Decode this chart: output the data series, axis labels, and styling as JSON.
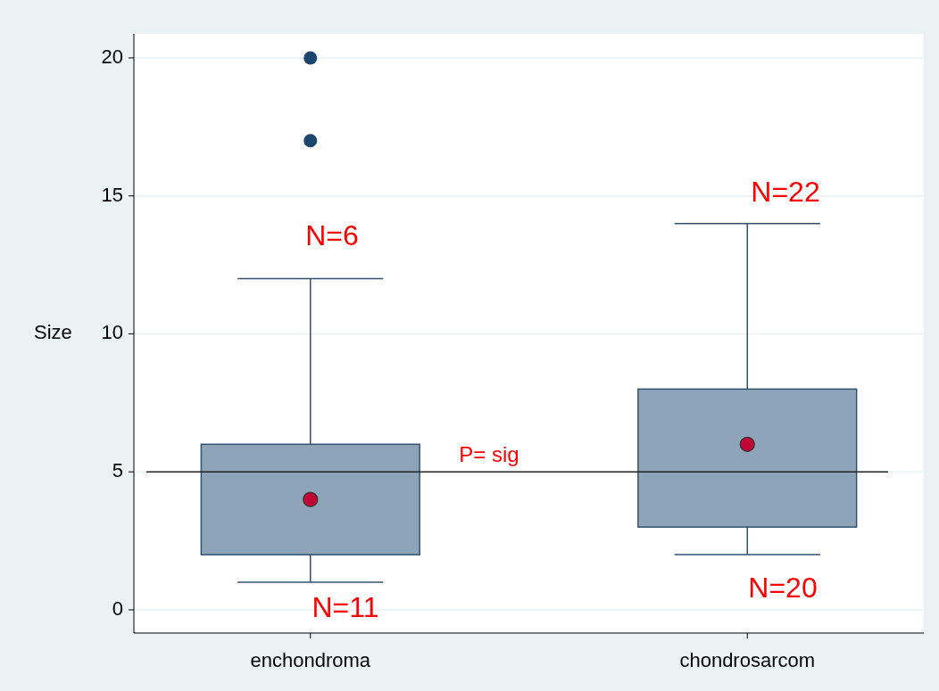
{
  "chart_data": {
    "type": "box",
    "ylabel": "Size",
    "categories": [
      "enchondroma",
      "chondrosarcom"
    ],
    "boxes": [
      {
        "low": 1,
        "q1": 2,
        "median": 4,
        "q3": 6,
        "high": 12,
        "outliers": [
          17,
          20
        ]
      },
      {
        "low": 2,
        "q1": 3,
        "median": 6,
        "q3": 8,
        "high": 14
      }
    ],
    "color": "#8ea4b8",
    "ylim": [
      -0.84,
      20.87
    ],
    "yticks": [
      0,
      5,
      10,
      15,
      20
    ],
    "grid": "y",
    "ref_lines": [
      {
        "axis": "y",
        "value": 5,
        "color": "#222222"
      }
    ],
    "annotations": [
      "N=6",
      "N=11",
      "N=22",
      "N=20",
      "P= sig"
    ]
  }
}
